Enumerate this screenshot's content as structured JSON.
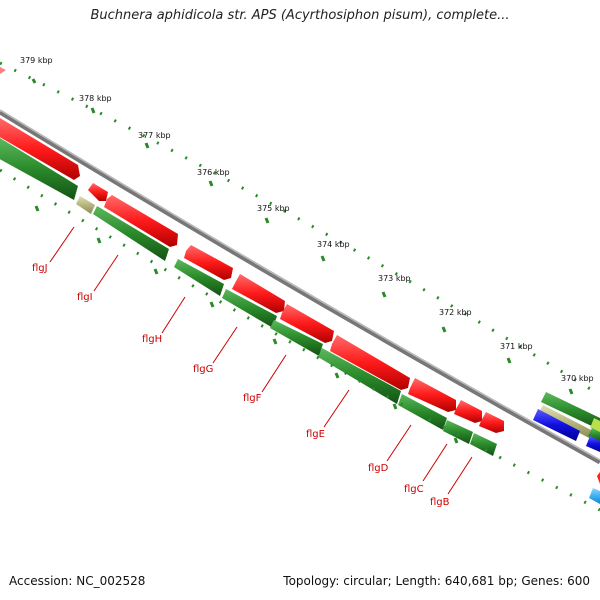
{
  "title": "Buchnera aphidicola str. APS (Acyrthosiphon pisum), complete...",
  "footer": {
    "accession": "Accession: NC_002528",
    "summary": "Topology: circular; Length: 640,681 bp; Genes: 600"
  },
  "ticks": [
    "379 kbp",
    "378 kbp",
    "377 kbp",
    "376 kbp",
    "375 kbp",
    "374 kbp",
    "373 kbp",
    "372 kbp",
    "371 kbp",
    "370 kbp"
  ],
  "genes": [
    "flgJ",
    "flgI",
    "flgH",
    "flgG",
    "flgF",
    "flgE",
    "flgD",
    "flgC",
    "flgB"
  ],
  "colors": {
    "forward_cds": "#ff1a1a",
    "reverse_cds": "#2a8a2a",
    "blue_feature": "#1010e0",
    "cyan_feature": "#22aaff",
    "tan_feature": "#b8b878",
    "label_red": "#cc0000",
    "backbone": "#888888"
  }
}
